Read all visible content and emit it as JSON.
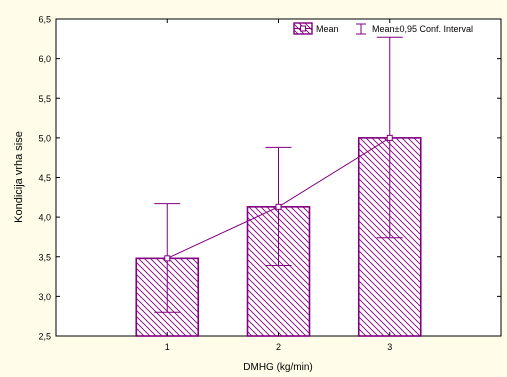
{
  "colors": {
    "background": "#fffde9",
    "plot_background": "#ffffff",
    "series": "#800080",
    "axis": "#000000"
  },
  "legend": {
    "mean_label": "Mean",
    "ci_label": "Mean±0,95 Conf. Interval"
  },
  "chart_data": {
    "type": "bar",
    "title": "",
    "xlabel": "DMHG (kg/min)",
    "ylabel": "Kondicija vrha sise",
    "categories": [
      "1",
      "2",
      "3"
    ],
    "xlim": [
      0,
      4
    ],
    "ylim": [
      2.5,
      6.5
    ],
    "yticks": [
      "2,5",
      "3,0",
      "3,5",
      "4,0",
      "4,5",
      "5,0",
      "5,5",
      "6,0",
      "6,5"
    ],
    "ytick_values": [
      2.5,
      3.0,
      3.5,
      4.0,
      4.5,
      5.0,
      5.5,
      6.0,
      6.5
    ],
    "grid": false,
    "legend_position": "top-right",
    "series": [
      {
        "name": "Mean",
        "values": [
          3.48,
          4.13,
          5.0
        ],
        "ci_lower": [
          2.8,
          3.39,
          3.74
        ],
        "ci_upper": [
          4.17,
          4.88,
          6.27
        ]
      }
    ]
  }
}
